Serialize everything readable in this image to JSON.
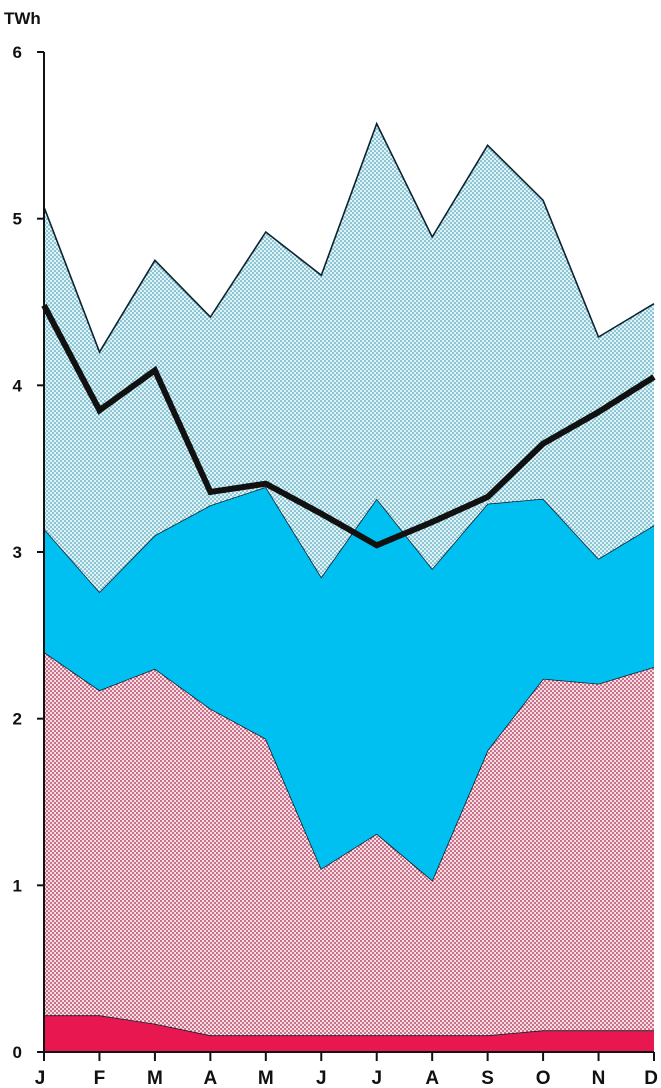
{
  "chart_data": {
    "type": "area",
    "stacked": true,
    "unit_label": "TWh",
    "title": "",
    "xlabel": "",
    "ylabel": "",
    "ylim": [
      0,
      6
    ],
    "yticks": [
      "0",
      "1",
      "2",
      "3",
      "4",
      "5",
      "6"
    ],
    "grid": false,
    "legend": "none",
    "categories": [
      "J",
      "F",
      "M",
      "A",
      "M",
      "J",
      "J",
      "A",
      "S",
      "O",
      "N",
      "D"
    ],
    "band_tops": [
      {
        "color": "#e8174f",
        "pattern": "solid",
        "values": [
          0.22,
          0.22,
          0.17,
          0.1,
          0.1,
          0.1,
          0.1,
          0.1,
          0.1,
          0.13,
          0.13,
          0.13
        ]
      },
      {
        "color": "#f2c2cf",
        "pattern": "dotted",
        "values": [
          2.4,
          2.17,
          2.3,
          2.06,
          1.88,
          1.1,
          1.31,
          1.03,
          1.81,
          2.24,
          2.21,
          2.31
        ]
      },
      {
        "color": "#00c0f2",
        "pattern": "solid",
        "values": [
          3.14,
          2.76,
          3.1,
          3.28,
          3.39,
          2.85,
          3.32,
          2.9,
          3.29,
          3.32,
          2.96,
          3.16
        ]
      },
      {
        "color": "#bfe9f2",
        "pattern": "dotted",
        "values": [
          5.07,
          4.2,
          4.75,
          4.41,
          4.92,
          4.66,
          5.57,
          4.89,
          5.44,
          5.11,
          4.29,
          4.49
        ]
      }
    ],
    "line": {
      "color": "#111111",
      "values": [
        4.48,
        3.85,
        4.09,
        3.36,
        3.41,
        3.23,
        3.04,
        3.18,
        3.33,
        3.65,
        3.84,
        4.05
      ]
    }
  }
}
